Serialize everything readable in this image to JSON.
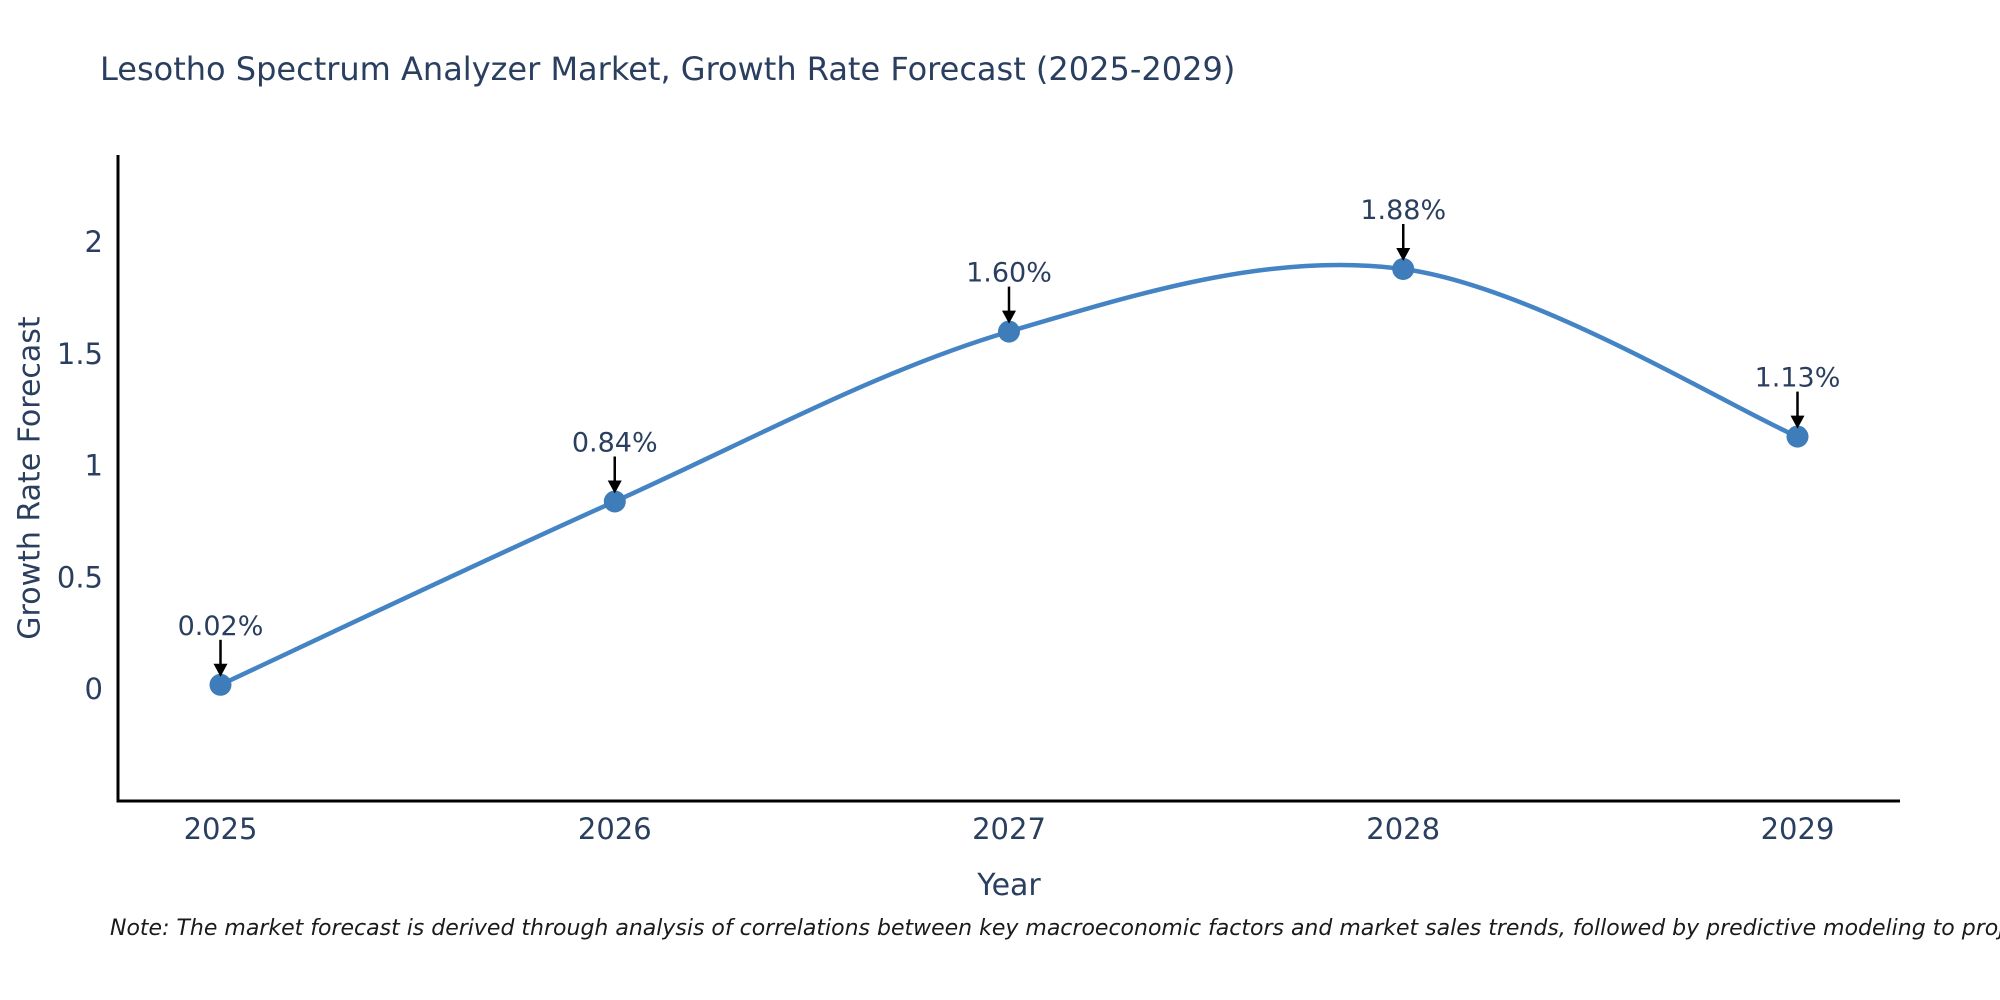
{
  "note": "Note: The market forecast is derived through analysis of correlations between key macroeconomic factors and market sales trends, followed by predictive modeling to project future sales",
  "chart_data": {
    "type": "line",
    "title": "Lesotho Spectrum Analyzer Market, Growth Rate Forecast (2025-2029)",
    "xlabel": "Year",
    "ylabel": "Growth Rate Forecast",
    "x": [
      2025,
      2026,
      2027,
      2028,
      2029
    ],
    "y": [
      0.02,
      0.84,
      1.6,
      1.88,
      1.13
    ],
    "point_labels": [
      "0.02%",
      "0.84%",
      "1.60%",
      "1.88%",
      "1.13%"
    ],
    "x_tick_values": [
      2025,
      2026,
      2027,
      2028,
      2029
    ],
    "x_tick_labels": [
      "2025",
      "2026",
      "2027",
      "2028",
      "2029"
    ],
    "y_tick_values": [
      0,
      0.5,
      1,
      1.5,
      2
    ],
    "y_tick_labels": [
      "0",
      "0.5",
      "1",
      "1.5",
      "2"
    ],
    "xlim": [
      2024.74,
      2029.26
    ],
    "ylim": [
      -0.5,
      2.39
    ],
    "line_shape": "spline",
    "grid": false,
    "legend_position": "none",
    "marker": "circle",
    "colors": {
      "line": "#4484c4",
      "marker": "#3f7cba",
      "axis": "#000000",
      "text": "#2a3f5f",
      "annotation_arrow": "#000000",
      "note_text": "#1a1a1a",
      "background": "#ffffff"
    }
  }
}
